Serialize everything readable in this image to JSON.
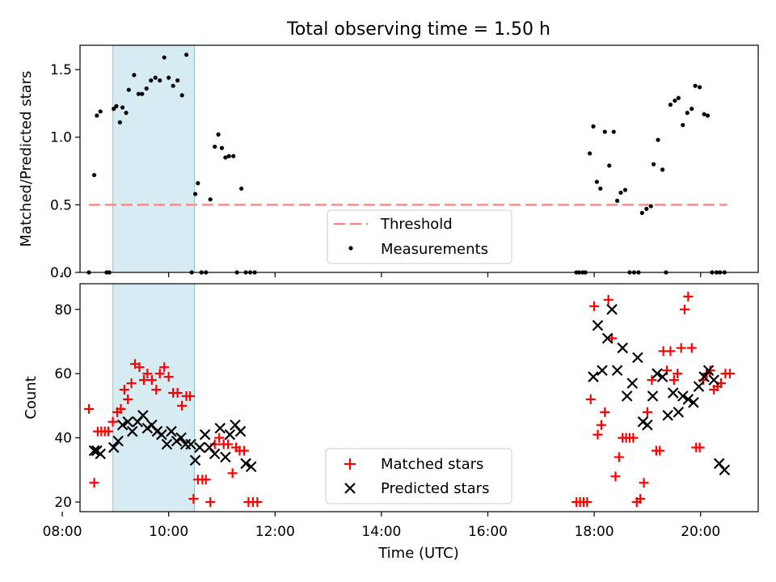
{
  "figure": {
    "title": "Total observing time = 1.50 h"
  },
  "chart_data": [
    {
      "type": "scatter",
      "panel": "top",
      "ylabel": "Matched/Predicted stars",
      "xlim": [
        "08:20",
        "21:05"
      ],
      "ylim": [
        0,
        1.68
      ],
      "yticks": [
        0.0,
        0.5,
        1.0,
        1.5
      ],
      "ytick_labels": [
        "0.0",
        "0.5",
        "1.0",
        "1.5"
      ],
      "grid": false,
      "legend_position": "lower-center",
      "shaded_span": {
        "start": "08:57",
        "end": "10:29",
        "color": "#add8e6"
      },
      "threshold": {
        "name": "Threshold",
        "value": 0.5,
        "x_range": [
          "08:30",
          "20:30"
        ],
        "color": "#ff8080"
      },
      "series": [
        {
          "name": "Measurements",
          "color": "#000000",
          "x": [
            "08:30",
            "08:36",
            "08:39",
            "08:43",
            "08:50",
            "08:53",
            "08:58",
            "09:01",
            "09:05",
            "09:08",
            "09:12",
            "09:15",
            "09:21",
            "09:26",
            "09:30",
            "09:35",
            "09:40",
            "09:45",
            "09:50",
            "09:55",
            "10:00",
            "10:05",
            "10:10",
            "10:15",
            "10:20",
            "10:26",
            "10:30",
            "10:33",
            "10:37",
            "10:42",
            "10:47",
            "10:52",
            "10:56",
            "11:00",
            "11:04",
            "11:08",
            "11:13",
            "11:17",
            "11:22",
            "11:27",
            "11:32",
            "11:37",
            "17:40",
            "17:43",
            "17:47",
            "17:50",
            "17:55",
            "17:59",
            "18:03",
            "18:07",
            "18:12",
            "18:17",
            "18:22",
            "18:26",
            "18:30",
            "18:35",
            "18:40",
            "18:45",
            "18:50",
            "18:54",
            "18:59",
            "19:04",
            "19:07",
            "19:12",
            "19:17",
            "19:21",
            "19:26",
            "19:31",
            "19:35",
            "19:40",
            "19:45",
            "19:50",
            "19:54",
            "19:59",
            "20:04",
            "20:08",
            "20:13",
            "20:18",
            "20:22",
            "20:27"
          ],
          "y": [
            0.0,
            0.72,
            1.16,
            1.19,
            0.0,
            0.0,
            1.21,
            1.23,
            1.11,
            1.22,
            1.18,
            1.35,
            1.46,
            1.32,
            1.32,
            1.36,
            1.42,
            1.44,
            1.42,
            1.59,
            1.44,
            1.38,
            1.42,
            1.31,
            1.61,
            0.0,
            0.58,
            0.66,
            0.0,
            0.0,
            0.54,
            0.93,
            1.02,
            0.92,
            0.85,
            0.86,
            0.86,
            0.0,
            0.62,
            0.0,
            0.0,
            0.0,
            0.0,
            0.0,
            0.0,
            0.0,
            0.88,
            1.08,
            0.67,
            0.62,
            1.04,
            0.79,
            1.04,
            0.53,
            0.59,
            0.61,
            0.0,
            0.0,
            0.0,
            0.44,
            0.47,
            0.49,
            0.8,
            0.98,
            0.76,
            0.0,
            1.24,
            1.27,
            1.29,
            1.09,
            1.18,
            1.21,
            1.38,
            1.37,
            1.17,
            1.16,
            0.0,
            0.0,
            0.0,
            0.0
          ]
        }
      ]
    },
    {
      "type": "scatter",
      "panel": "bottom",
      "xlabel": "Time (UTC)",
      "ylabel": "Count",
      "xlim": [
        "08:20",
        "21:05"
      ],
      "ylim": [
        17,
        88
      ],
      "xticks": [
        "08:00",
        "10:00",
        "12:00",
        "14:00",
        "16:00",
        "18:00",
        "20:00"
      ],
      "xtick_labels": [
        "08:00",
        "10:00",
        "12:00",
        "14:00",
        "16:00",
        "18:00",
        "20:00"
      ],
      "yticks": [
        20,
        40,
        60,
        80
      ],
      "ytick_labels": [
        "20",
        "40",
        "60",
        "80"
      ],
      "grid": false,
      "legend_position": "lower-center",
      "shaded_span": {
        "start": "08:57",
        "end": "10:29",
        "color": "#add8e6"
      },
      "series": [
        {
          "name": "Matched stars",
          "marker": "plus",
          "color": "#ff0000",
          "x": [
            "08:30",
            "08:36",
            "08:40",
            "08:44",
            "08:48",
            "08:52",
            "08:57",
            "09:02",
            "09:06",
            "09:10",
            "09:14",
            "09:18",
            "09:22",
            "09:27",
            "09:32",
            "09:36",
            "09:41",
            "09:46",
            "09:50",
            "09:55",
            "10:00",
            "10:05",
            "10:10",
            "10:15",
            "10:20",
            "10:24",
            "10:28",
            "10:33",
            "10:38",
            "10:42",
            "10:47",
            "10:52",
            "10:57",
            "11:02",
            "11:07",
            "11:12",
            "11:16",
            "11:20",
            "11:25",
            "11:30",
            "11:35",
            "11:40",
            "17:40",
            "17:44",
            "17:48",
            "17:52",
            "17:56",
            "18:00",
            "18:04",
            "18:08",
            "18:12",
            "18:16",
            "18:20",
            "18:24",
            "18:28",
            "18:32",
            "18:36",
            "18:40",
            "18:44",
            "18:48",
            "18:52",
            "18:56",
            "19:00",
            "19:05",
            "19:10",
            "19:14",
            "19:18",
            "19:22",
            "19:26",
            "19:30",
            "19:34",
            "19:38",
            "19:42",
            "19:46",
            "19:50",
            "19:55",
            "19:59",
            "20:03",
            "20:07",
            "20:11",
            "20:15",
            "20:19",
            "20:23",
            "20:28",
            "20:33"
          ],
          "y": [
            49,
            26,
            42,
            42,
            42,
            42,
            45,
            48,
            49,
            55,
            52,
            57,
            63,
            62,
            58,
            60,
            58,
            55,
            60,
            62,
            59,
            54,
            54,
            50,
            53,
            53,
            21,
            27,
            27,
            27,
            20,
            38,
            40,
            38,
            38,
            29,
            37,
            36,
            36,
            20,
            20,
            20,
            20,
            20,
            20,
            20,
            52,
            81,
            41,
            44,
            48,
            83,
            71,
            28,
            34,
            40,
            40,
            40,
            40,
            20,
            21,
            26,
            48,
            58,
            36,
            36,
            67,
            61,
            67,
            58,
            60,
            68,
            80,
            84,
            68,
            37,
            37,
            58,
            60,
            61,
            55,
            56,
            57,
            60,
            60
          ]
        },
        {
          "name": "Predicted stars",
          "marker": "x",
          "color": "#000000",
          "x": [
            "08:36",
            "08:39",
            "08:43",
            "08:58",
            "09:03",
            "09:08",
            "09:14",
            "09:19",
            "09:25",
            "09:31",
            "09:36",
            "09:41",
            "09:47",
            "09:52",
            "09:58",
            "10:03",
            "10:09",
            "10:14",
            "10:19",
            "10:25",
            "10:30",
            "10:35",
            "10:41",
            "10:46",
            "10:52",
            "10:58",
            "11:04",
            "11:09",
            "11:15",
            "11:21",
            "11:27",
            "11:33",
            "17:59",
            "18:04",
            "18:09",
            "18:15",
            "18:20",
            "18:26",
            "18:32",
            "18:37",
            "18:43",
            "18:49",
            "18:55",
            "19:00",
            "19:06",
            "19:11",
            "19:17",
            "19:23",
            "19:29",
            "19:35",
            "19:40",
            "19:46",
            "19:52",
            "19:58",
            "20:04",
            "20:09",
            "20:15",
            "20:21",
            "20:27"
          ],
          "y": [
            36,
            36,
            35,
            37,
            39,
            44,
            45,
            42,
            45,
            47,
            43,
            44,
            42,
            41,
            38,
            42,
            39,
            40,
            38,
            38,
            33,
            37,
            41,
            37,
            35,
            43,
            34,
            41,
            44,
            42,
            32,
            31,
            59,
            75,
            61,
            71,
            80,
            61,
            68,
            53,
            57,
            65,
            45,
            44,
            53,
            60,
            59,
            47,
            54,
            48,
            53,
            52,
            51,
            56,
            59,
            61,
            58,
            32,
            30
          ]
        }
      ]
    }
  ]
}
